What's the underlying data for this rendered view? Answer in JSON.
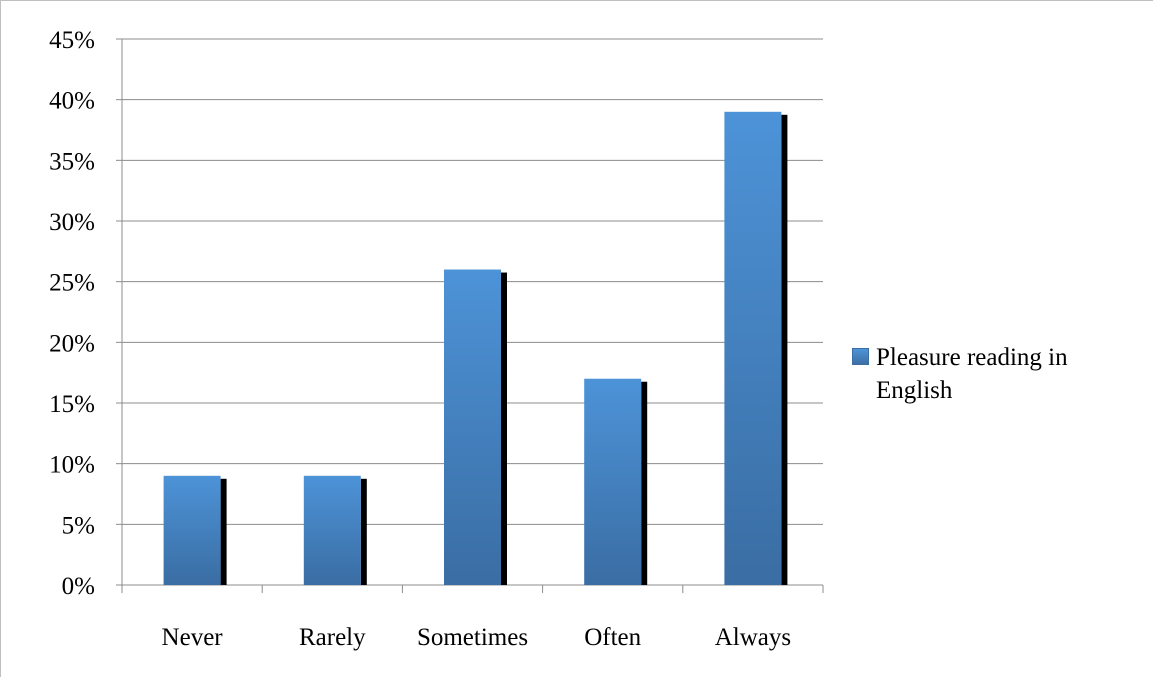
{
  "chart_data": {
    "type": "bar",
    "title": "",
    "xlabel": "",
    "ylabel": "",
    "categories": [
      "Never",
      "Rarely",
      "Sometimes",
      "Often",
      "Always"
    ],
    "series": [
      {
        "name": "Pleasure reading in English",
        "values": [
          0.09,
          0.09,
          0.26,
          0.17,
          0.39
        ]
      }
    ],
    "ylim": [
      0,
      0.45
    ],
    "yticks": [
      "0%",
      "5%",
      "10%",
      "15%",
      "20%",
      "25%",
      "30%",
      "35%",
      "40%",
      "45%"
    ],
    "grid": "horizontal",
    "legend_position": "right",
    "bar_color": "#4a90d9",
    "bar_shadow_color": "#000000"
  }
}
